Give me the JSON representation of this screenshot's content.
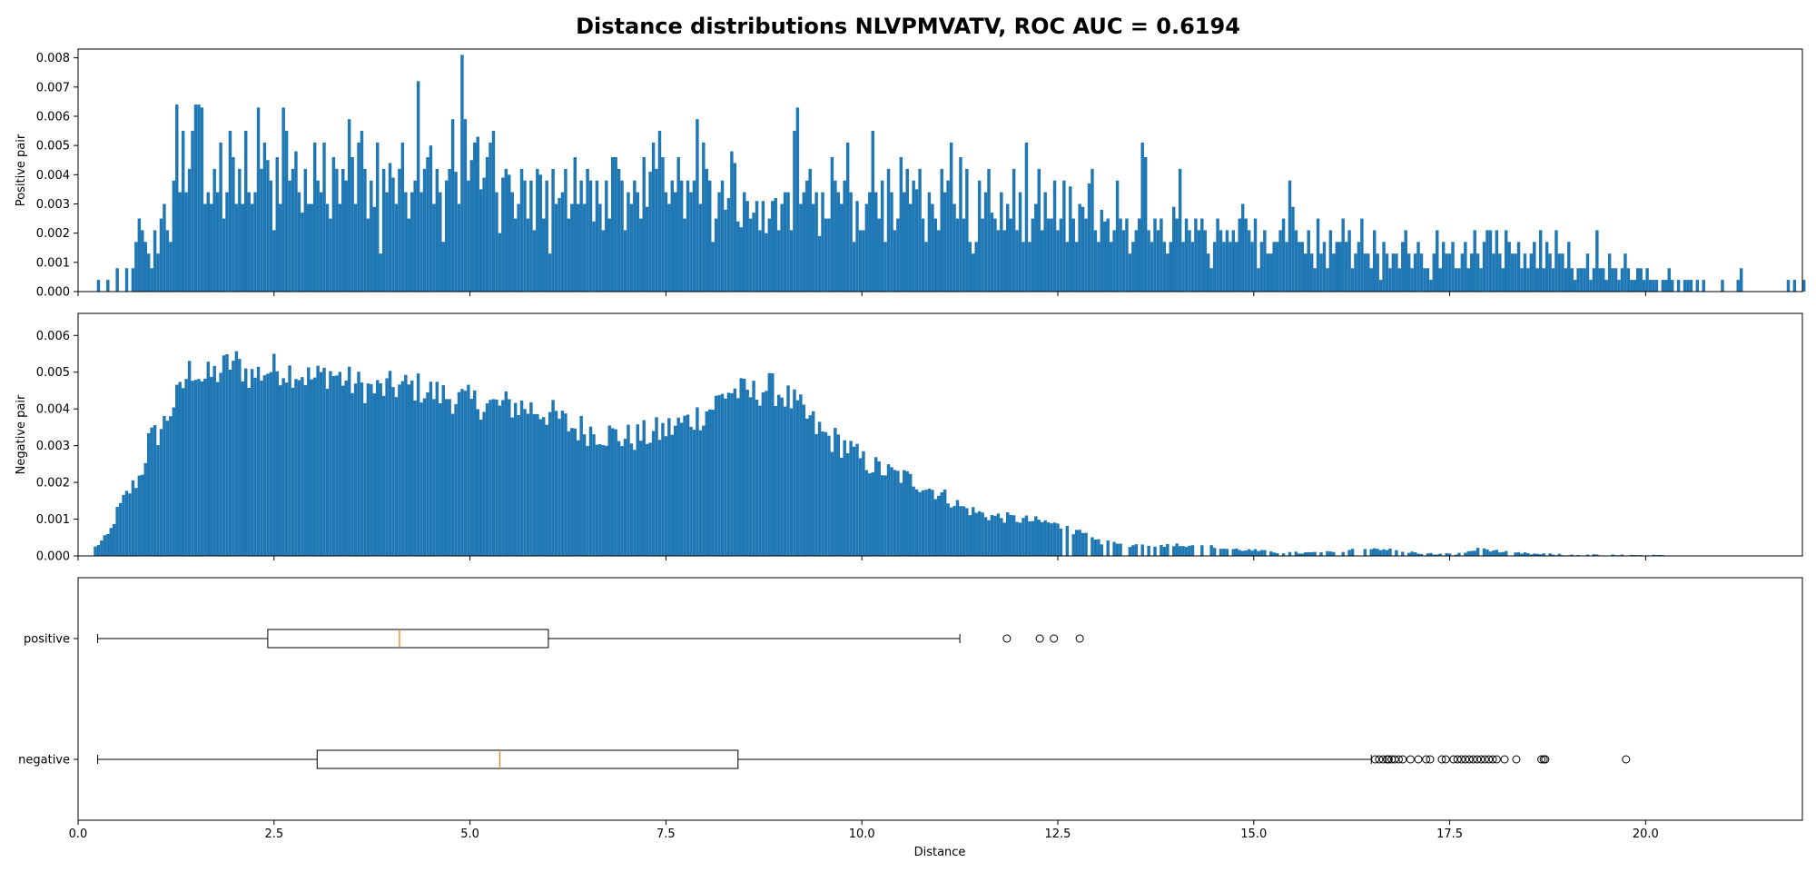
{
  "chart_data": [
    {
      "type": "histogram",
      "title": "Distance distributions NLVPMVATV, ROC AUC = 0.6194",
      "ylabel": "Positive pair",
      "xlim": [
        0,
        22
      ],
      "ylim": [
        0,
        0.0083
      ],
      "yticks": [
        0,
        0.001,
        0.002,
        0.003,
        0.004,
        0.005,
        0.006,
        0.007,
        0.008
      ],
      "ytick_labels": [
        "0.000",
        "0.001",
        "0.002",
        "0.003",
        "0.004",
        "0.005",
        "0.006",
        "0.007",
        "0.008"
      ],
      "color": "#1f77b4",
      "bin_start": 0.0,
      "bin_width": 0.04,
      "values": [
        0,
        0,
        0,
        0,
        0,
        0,
        0.0004,
        0,
        0,
        0.0004,
        0,
        0,
        0.0008,
        0,
        0,
        0.0008,
        0,
        0.0008,
        0.0017,
        0.0025,
        0.0021,
        0.0017,
        0.0013,
        0.0008,
        0.0021,
        0.0013,
        0.0025,
        0.003,
        0.0021,
        0.0017,
        0.0038,
        0.0064,
        0.0034,
        0.0055,
        0.0034,
        0.0042,
        0.0055,
        0.0064,
        0.0064,
        0.0063,
        0.003,
        0.0034,
        0.003,
        0.0042,
        0.0034,
        0.0051,
        0.0025,
        0.0034,
        0.0055,
        0.0046,
        0.003,
        0.0042,
        0.003,
        0.0055,
        0.0034,
        0.003,
        0.0034,
        0.0063,
        0.0042,
        0.0051,
        0.0045,
        0.0038,
        0.0021,
        0.0046,
        0.003,
        0.0063,
        0.0055,
        0.0038,
        0.0042,
        0.0048,
        0.0034,
        0.0027,
        0.0042,
        0.003,
        0.003,
        0.0051,
        0.0038,
        0.0034,
        0.0051,
        0.003,
        0.0025,
        0.0046,
        0.0042,
        0.003,
        0.0042,
        0.0038,
        0.0059,
        0.0046,
        0.003,
        0.0051,
        0.0055,
        0.0042,
        0.0025,
        0.0038,
        0.0029,
        0.0051,
        0.0013,
        0.0042,
        0.0034,
        0.0044,
        0.0039,
        0.003,
        0.0042,
        0.0051,
        0.0034,
        0.0025,
        0.0034,
        0.0038,
        0.0072,
        0.0034,
        0.0042,
        0.0046,
        0.005,
        0.003,
        0.0042,
        0.0034,
        0.0017,
        0.0038,
        0.0042,
        0.0059,
        0.0041,
        0.003,
        0.0081,
        0.0059,
        0.0038,
        0.0045,
        0.0051,
        0.0053,
        0.0035,
        0.0039,
        0.0046,
        0.0051,
        0.0055,
        0.0034,
        0.002,
        0.0039,
        0.0042,
        0.004,
        0.0034,
        0.0025,
        0.003,
        0.0042,
        0.0038,
        0.0025,
        0.0038,
        0.0021,
        0.0042,
        0.004,
        0.0025,
        0.0038,
        0.0013,
        0.0042,
        0.003,
        0.0032,
        0.0034,
        0.0042,
        0.0025,
        0.003,
        0.0046,
        0.003,
        0.0038,
        0.003,
        0.0042,
        0.0038,
        0.0024,
        0.0038,
        0.003,
        0.0021,
        0.0038,
        0.0025,
        0.0046,
        0.0046,
        0.0042,
        0.0038,
        0.0021,
        0.0034,
        0.003,
        0.0038,
        0.0034,
        0.0025,
        0.0046,
        0.0029,
        0.0041,
        0.0051,
        0.0042,
        0.0055,
        0.0046,
        0.0034,
        0.003,
        0.0038,
        0.0034,
        0.0046,
        0.0038,
        0.0025,
        0.0038,
        0.0034,
        0.0038,
        0.0059,
        0.003,
        0.0051,
        0.0042,
        0.0038,
        0.0017,
        0.0025,
        0.0034,
        0.0038,
        0.0028,
        0.0032,
        0.0048,
        0.0044,
        0.0024,
        0.0022,
        0.0034,
        0.0031,
        0.0025,
        0.0027,
        0.0031,
        0.0021,
        0.0031,
        0.002,
        0.0025,
        0.0031,
        0.0032,
        0.0021,
        0.003,
        0.0034,
        0.0034,
        0.0021,
        0.0055,
        0.0063,
        0.003,
        0.0034,
        0.0038,
        0.0042,
        0.003,
        0.0034,
        0.0019,
        0.0034,
        0.0025,
        0.0025,
        0.0046,
        0.0038,
        0.0034,
        0.003,
        0.0038,
        0.0051,
        0.0034,
        0.0017,
        0.0031,
        0.0021,
        0.0021,
        0.003,
        0.0034,
        0.0055,
        0.0034,
        0.0025,
        0.0038,
        0.0017,
        0.0042,
        0.0034,
        0.0021,
        0.0025,
        0.0046,
        0.0034,
        0.0042,
        0.003,
        0.0038,
        0.0035,
        0.0042,
        0.0025,
        0.0017,
        0.0034,
        0.003,
        0.0025,
        0.0021,
        0.0042,
        0.0034,
        0.0038,
        0.0051,
        0.003,
        0.0025,
        0.0046,
        0.0025,
        0.0042,
        0.0017,
        0.0013,
        0.0017,
        0.0038,
        0.0025,
        0.0034,
        0.0042,
        0.0027,
        0.0025,
        0.0021,
        0.0034,
        0.0021,
        0.003,
        0.0025,
        0.0042,
        0.0021,
        0.0034,
        0.0017,
        0.0051,
        0.0017,
        0.0025,
        0.003,
        0.0042,
        0.0021,
        0.0034,
        0.0025,
        0.0025,
        0.0038,
        0.0021,
        0.0025,
        0.0038,
        0.0017,
        0.0036,
        0.0025,
        0.0017,
        0.003,
        0.0029,
        0.0025,
        0.0037,
        0.0042,
        0.0021,
        0.0017,
        0.0028,
        0.0024,
        0.0025,
        0.0017,
        0.0021,
        0.0038,
        0.0025,
        0.0021,
        0.0025,
        0.0013,
        0.0017,
        0.0021,
        0.0025,
        0.0051,
        0.0046,
        0.0021,
        0.0017,
        0.0025,
        0.0021,
        0.0025,
        0.0017,
        0.0013,
        0.0017,
        0.0029,
        0.0025,
        0.0042,
        0.0017,
        0.0025,
        0.0021,
        0.0017,
        0.0025,
        0.0021,
        0.0025,
        0.0021,
        0.0013,
        0.0008,
        0.0017,
        0.0025,
        0.0021,
        0.0017,
        0.0021,
        0.0017,
        0.0021,
        0.0017,
        0.0025,
        0.003,
        0.0025,
        0.0021,
        0.0017,
        0.0025,
        0.0008,
        0.0017,
        0.0021,
        0.0013,
        0.0013,
        0.0017,
        0.0017,
        0.0021,
        0.0025,
        0.0017,
        0.0038,
        0.0029,
        0.0021,
        0.0017,
        0.0017,
        0.0013,
        0.0021,
        0.0013,
        0.0008,
        0.0025,
        0.0013,
        0.0017,
        0.0008,
        0.0021,
        0.0013,
        0.0017,
        0.0017,
        0.0025,
        0.0017,
        0.0021,
        0.0008,
        0.0013,
        0.0017,
        0.0025,
        0.0013,
        0.0013,
        0.0008,
        0.0021,
        0.0013,
        0.0004,
        0.0017,
        0.0013,
        0.0008,
        0.0013,
        0.0013,
        0.0008,
        0.0017,
        0.0021,
        0.0013,
        0.0008,
        0.0013,
        0.0017,
        0.0013,
        0.0008,
        0.0008,
        0.0004,
        0.0013,
        0.0021,
        0.0008,
        0.0017,
        0.0013,
        0.0013,
        0.0017,
        0.0008,
        0.0008,
        0.0013,
        0.0017,
        0.0008,
        0.0013,
        0.0021,
        0.0013,
        0.0008,
        0.0017,
        0.0021,
        0.0021,
        0.0013,
        0.0021,
        0.0013,
        0.0008,
        0.0021,
        0.0017,
        0.0013,
        0.0013,
        0.0017,
        0.0008,
        0.0013,
        0.0008,
        0.0013,
        0.0017,
        0.0008,
        0.0021,
        0.0008,
        0.0017,
        0.0013,
        0.0008,
        0.0021,
        0.0013,
        0.0013,
        0.0008,
        0.0017,
        0.0008,
        0.0004,
        0.0008,
        0.0008,
        0.0008,
        0.0013,
        0.0004,
        0.0008,
        0.0021,
        0.0008,
        0.0008,
        0.0004,
        0.0013,
        0.0008,
        0.0008,
        0.0004,
        0.0008,
        0.0013,
        0.0008,
        0.0004,
        0.0004,
        0.0008,
        0.0008,
        0.0004,
        0.0008,
        0.0004,
        0.0004,
        0.0004,
        0,
        0.0004,
        0.0004,
        0.0008,
        0.0004,
        0,
        0.0004,
        0,
        0.0004,
        0.0004,
        0.0004,
        0,
        0.0004,
        0,
        0.0004,
        0,
        0,
        0,
        0,
        0,
        0.0004,
        0,
        0,
        0,
        0,
        0.0004,
        0.0008,
        0,
        0,
        0,
        0,
        0,
        0,
        0,
        0,
        0,
        0,
        0,
        0,
        0,
        0,
        0.0004,
        0,
        0.0004,
        0,
        0,
        0.0004,
        0,
        0,
        0,
        0,
        0,
        0,
        0,
        0,
        0,
        0,
        0,
        0,
        0,
        0,
        0,
        0,
        0,
        0,
        0,
        0,
        0,
        0,
        0,
        0,
        0,
        0,
        0,
        0,
        0,
        0,
        0.0004,
        0,
        0,
        0,
        0,
        0,
        0,
        0,
        0,
        0,
        0,
        0,
        0,
        0,
        0,
        0,
        0,
        0,
        0,
        0,
        0,
        0.0004,
        0,
        0,
        0,
        0.0004,
        0,
        0,
        0,
        0,
        0,
        0,
        0,
        0,
        0.0004,
        0,
        0,
        0,
        0
      ]
    },
    {
      "type": "histogram",
      "ylabel": "Negative pair",
      "xlim": [
        0,
        22
      ],
      "ylim": [
        0,
        0.0066
      ],
      "yticks": [
        0,
        0.001,
        0.002,
        0.003,
        0.004,
        0.005,
        0.006
      ],
      "ytick_labels": [
        "0.000",
        "0.001",
        "0.002",
        "0.003",
        "0.004",
        "0.005",
        "0.006"
      ],
      "color": "#1f77b4",
      "bin_start": 0.0,
      "bin_width": 0.04,
      "profile_x": [
        0.2,
        0.3,
        0.4,
        0.5,
        0.6,
        0.7,
        0.8,
        0.9,
        1.0,
        1.1,
        1.2,
        1.3,
        1.4,
        1.5,
        1.6,
        1.7,
        1.8,
        1.9,
        2.0,
        2.2,
        2.5,
        2.8,
        3.0,
        3.2,
        3.5,
        3.8,
        4.0,
        4.3,
        4.6,
        5.0,
        5.3,
        5.6,
        6.0,
        6.3,
        6.6,
        7.0,
        7.3,
        7.6,
        8.0,
        8.3,
        8.6,
        8.8,
        9.0,
        9.2,
        9.5,
        9.8,
        10.0,
        10.3,
        10.6,
        11.0,
        11.3,
        11.6,
        12.0,
        12.4,
        12.8,
        13.0,
        13.3,
        13.6,
        14.0,
        14.3,
        14.6,
        15.0,
        15.3,
        15.6,
        16.0,
        16.3,
        16.6,
        17.0,
        17.3,
        17.6,
        17.9,
        18.2,
        18.6,
        19.0,
        19.5,
        20.0,
        20.5,
        22.0
      ],
      "profile_y": [
        0.0002,
        0.0004,
        0.0006,
        0.0012,
        0.0016,
        0.0019,
        0.0022,
        0.0031,
        0.0033,
        0.0036,
        0.0041,
        0.0044,
        0.005,
        0.0051,
        0.0048,
        0.0049,
        0.005,
        0.0052,
        0.0053,
        0.0049,
        0.0051,
        0.005,
        0.0048,
        0.005,
        0.0047,
        0.0045,
        0.0046,
        0.0046,
        0.0044,
        0.0042,
        0.0041,
        0.0041,
        0.0039,
        0.0035,
        0.0034,
        0.0032,
        0.0033,
        0.0035,
        0.0039,
        0.0045,
        0.0044,
        0.0046,
        0.0044,
        0.004,
        0.0033,
        0.003,
        0.0026,
        0.0023,
        0.0021,
        0.0017,
        0.0013,
        0.0011,
        0.001,
        0.0009,
        0.0006,
        0.0004,
        0.0003,
        0.0003,
        0.0003,
        0.0003,
        0.0002,
        0.00015,
        0.0001,
        8e-05,
        0.0001,
        0.0002,
        0.0002,
        0.0001,
        5e-05,
        5e-05,
        0.0002,
        0.0001,
        5e-05,
        3e-05,
        2e-05,
        1e-05,
        0,
        0
      ],
      "noise_amplitude": 0.00045
    },
    {
      "type": "boxplot",
      "xlabel": "Distance",
      "xlim": [
        0,
        22
      ],
      "xticks": [
        0,
        2.5,
        5.0,
        7.5,
        10.0,
        12.5,
        15.0,
        17.5,
        20.0
      ],
      "xtick_labels": [
        "0.0",
        "2.5",
        "5.0",
        "7.5",
        "10.0",
        "12.5",
        "15.0",
        "17.5",
        "20.0"
      ],
      "median_color": "#ff7f0e",
      "boxes": [
        {
          "label": "positive",
          "whisker_low": 0.25,
          "q1": 2.42,
          "median": 4.1,
          "q3": 6.0,
          "whisker_high": 11.25,
          "outliers": [
            11.85,
            12.27,
            12.45,
            12.78
          ]
        },
        {
          "label": "negative",
          "whisker_low": 0.25,
          "q1": 3.05,
          "median": 5.38,
          "q3": 8.42,
          "whisker_high": 16.5,
          "outliers": [
            16.55,
            16.6,
            16.65,
            16.7,
            16.72,
            16.76,
            16.8,
            16.85,
            16.9,
            17.0,
            17.1,
            17.2,
            17.25,
            17.4,
            17.45,
            17.55,
            17.6,
            17.65,
            17.7,
            17.75,
            17.8,
            17.85,
            17.9,
            17.95,
            18.0,
            18.05,
            18.1,
            18.2,
            18.35,
            18.67,
            18.7,
            18.72,
            19.75
          ]
        }
      ]
    }
  ]
}
